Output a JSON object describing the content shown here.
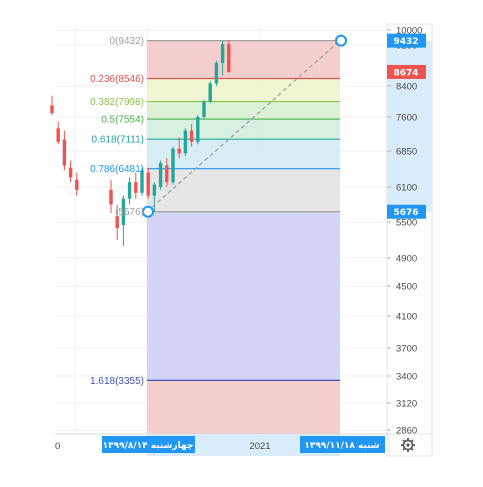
{
  "chart_data": {
    "type": "candlestick",
    "price_axis": {
      "ticks": [
        "10000",
        "9200",
        "8400",
        "7600",
        "6850",
        "6100",
        "5500",
        "4900",
        "4500",
        "4100",
        "3700",
        "3400",
        "3120",
        "2860"
      ],
      "tick_values": [
        10000,
        9200,
        8400,
        7600,
        6850,
        6100,
        5500,
        4900,
        4500,
        4100,
        3700,
        3400,
        3120,
        2860
      ]
    },
    "price_tags": [
      {
        "label": "9432",
        "value": 9432,
        "color": "#2196f3"
      },
      {
        "label": "8674",
        "value": 8674,
        "color": "#ef5350"
      },
      {
        "label": "5676",
        "value": 5676,
        "color": "#2196f3"
      }
    ],
    "time_axis": {
      "left_edge_label": "0",
      "year_label": "2021",
      "start_date_label": "چهارشنبه ۱۳۹۹/۸/۱۴",
      "end_date_label": "شنبه ۱۳۹۹/۱۱/۱۸"
    },
    "fibonacci": {
      "levels": [
        {
          "label": "0(9432)",
          "ratio": 0,
          "price": 9432,
          "color": "#a0a0a0",
          "fill": "#f4c9c9"
        },
        {
          "label": "0.236(8546)",
          "ratio": 0.236,
          "price": 8546,
          "color": "#e0524f",
          "fill": "#eef5cc"
        },
        {
          "label": "0.382(7998)",
          "ratio": 0.382,
          "price": 7998,
          "color": "#8bc34a",
          "fill": "#d9f0cf"
        },
        {
          "label": "0.5(7554)",
          "ratio": 0.5,
          "price": 7554,
          "color": "#4caf50",
          "fill": "#d2f0dc"
        },
        {
          "label": "0.618(7111)",
          "ratio": 0.618,
          "price": 7111,
          "color": "#26a69a",
          "fill": "#d1ecf2"
        },
        {
          "label": "0.786(6481)",
          "ratio": 0.786,
          "price": 6481,
          "color": "#2196f3",
          "fill": "#e3e3e3"
        },
        {
          "label": "(5676)",
          "ratio": 1,
          "price": 5676,
          "color": "#9e9e9e",
          "fill": "#cfcff5"
        },
        {
          "label": "1.618(3355)",
          "ratio": 1.618,
          "price": 3355,
          "color": "#3f51b5",
          "fill": "#f4c9c9"
        }
      ],
      "anchor_start": {
        "price": 5676
      },
      "anchor_end": {
        "price": 9432
      }
    },
    "candles": [
      {
        "t": 0,
        "o": 7900,
        "h": 8150,
        "l": 7650,
        "c": 7700
      },
      {
        "t": 1,
        "o": 7350,
        "h": 7500,
        "l": 7000,
        "c": 7050
      },
      {
        "t": 2,
        "o": 7100,
        "h": 7300,
        "l": 6450,
        "c": 6550
      },
      {
        "t": 3,
        "o": 6500,
        "h": 6650,
        "l": 6200,
        "c": 6300
      },
      {
        "t": 4,
        "o": 6250,
        "h": 6400,
        "l": 5950,
        "c": 6050
      },
      {
        "t": 5,
        "o": 6050,
        "h": 6250,
        "l": 5650,
        "c": 5800
      },
      {
        "t": 6,
        "o": 5600,
        "h": 5800,
        "l": 5200,
        "c": 5400
      },
      {
        "t": 7,
        "o": 5450,
        "h": 5950,
        "l": 5100,
        "c": 5900
      },
      {
        "t": 8,
        "o": 5900,
        "h": 6300,
        "l": 5800,
        "c": 6200
      },
      {
        "t": 9,
        "o": 6200,
        "h": 6400,
        "l": 5900,
        "c": 6000
      },
      {
        "t": 10,
        "o": 6000,
        "h": 6500,
        "l": 5950,
        "c": 6450
      },
      {
        "t": 11,
        "o": 6400,
        "h": 6500,
        "l": 5900,
        "c": 5950
      },
      {
        "t": 12,
        "o": 5950,
        "h": 6200,
        "l": 5676,
        "c": 6150
      },
      {
        "t": 13,
        "o": 6100,
        "h": 6650,
        "l": 6050,
        "c": 6600
      },
      {
        "t": 14,
        "o": 6550,
        "h": 6700,
        "l": 6100,
        "c": 6200
      },
      {
        "t": 15,
        "o": 6200,
        "h": 6950,
        "l": 6150,
        "c": 6900
      },
      {
        "t": 16,
        "o": 6900,
        "h": 7150,
        "l": 6700,
        "c": 6800
      },
      {
        "t": 17,
        "o": 6800,
        "h": 7350,
        "l": 6750,
        "c": 7300
      },
      {
        "t": 18,
        "o": 7300,
        "h": 7450,
        "l": 6950,
        "c": 7050
      },
      {
        "t": 19,
        "o": 7050,
        "h": 7650,
        "l": 7000,
        "c": 7600
      },
      {
        "t": 20,
        "o": 7600,
        "h": 8050,
        "l": 7550,
        "c": 8000
      },
      {
        "t": 21,
        "o": 8000,
        "h": 8500,
        "l": 7950,
        "c": 8450
      },
      {
        "t": 22,
        "o": 8450,
        "h": 8900,
        "l": 8400,
        "c": 8850
      },
      {
        "t": 23,
        "o": 8850,
        "h": 9432,
        "l": 8600,
        "c": 9250
      },
      {
        "t": 24,
        "o": 9250,
        "h": 9432,
        "l": 8650,
        "c": 8674
      }
    ],
    "grid": true,
    "colors": {
      "up": "#26a69a",
      "down": "#ef5350",
      "accent": "#2196f3"
    }
  },
  "icons": {
    "settings": "gear-icon"
  }
}
